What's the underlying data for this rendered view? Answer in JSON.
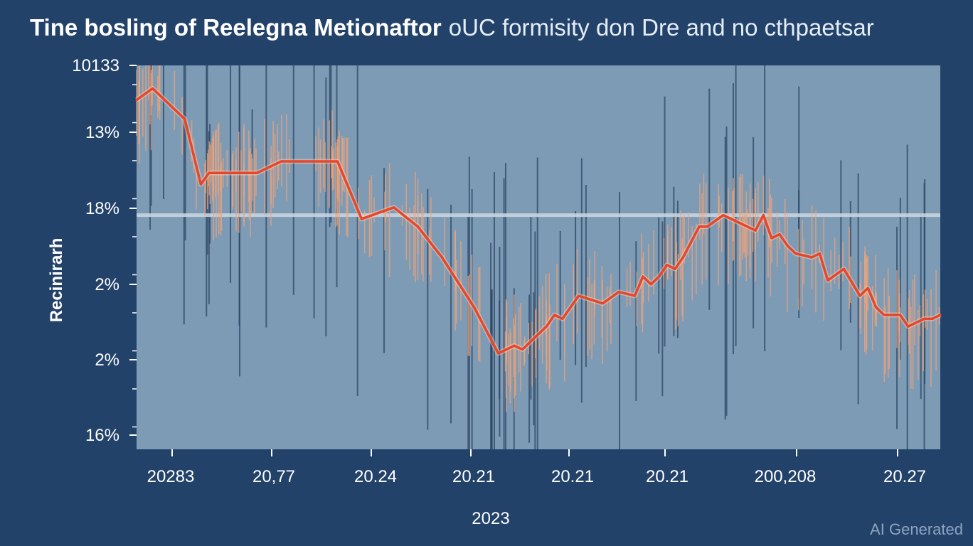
{
  "header": {
    "title_main": "Tine bosling of Reelegna Metionaftor",
    "title_sub": "oUC formisity don Dre and no cthpaetsar"
  },
  "watermark": "AI Generated",
  "colors": {
    "background": "#22426a",
    "plot_area": "#7d9bb5",
    "series_line": "#e8452a",
    "spike_light": "#f5a477",
    "spike_dark": "#2e4867",
    "reference_line": "#cdd8e2"
  },
  "chart_data": {
    "type": "line",
    "title": "Tine bosling of Reelegna Metionaftor",
    "subtitle": "oUC formisity don Dre and no cthpaetsar",
    "xlabel": "2023",
    "ylabel": "Recinirarh",
    "y_tick_labels": [
      "10133",
      "13%",
      "18%",
      "2%",
      "2%",
      "16%"
    ],
    "x_tick_labels": [
      "20283",
      "20,77",
      "20.24",
      "20.21",
      "20.21",
      "20.21",
      "200,208",
      "20.27"
    ],
    "y_domain": [
      0,
      100
    ],
    "reference_line_value": 61,
    "grid": false,
    "legend": "none",
    "series": [
      {
        "x": [
          0,
          2,
          3,
          4,
          5,
          6,
          8,
          9,
          10,
          12,
          15,
          18,
          20,
          22,
          25,
          28,
          32,
          35,
          38,
          42,
          45,
          47,
          48,
          50,
          51,
          52,
          53,
          55,
          58,
          60,
          62,
          63,
          64,
          65,
          66,
          67,
          68,
          69,
          70,
          71,
          73,
          75,
          77,
          78,
          79,
          80,
          81,
          82,
          84,
          85,
          86,
          88,
          90,
          91,
          92,
          93,
          95,
          96,
          97,
          98,
          99,
          100
        ],
        "y": [
          91,
          94,
          92,
          90,
          88,
          86,
          69,
          72,
          72,
          72,
          72,
          75,
          75,
          75,
          75,
          60,
          63,
          58,
          50,
          37,
          25,
          27,
          26,
          30,
          32,
          35,
          34,
          40,
          38,
          41,
          40,
          45,
          43,
          45,
          48,
          47,
          50,
          54,
          58,
          58,
          61,
          59,
          57,
          61,
          55,
          56,
          53,
          51,
          50,
          51,
          44,
          47,
          40,
          42,
          37,
          35,
          35,
          32,
          33,
          34,
          34,
          35
        ]
      }
    ]
  }
}
